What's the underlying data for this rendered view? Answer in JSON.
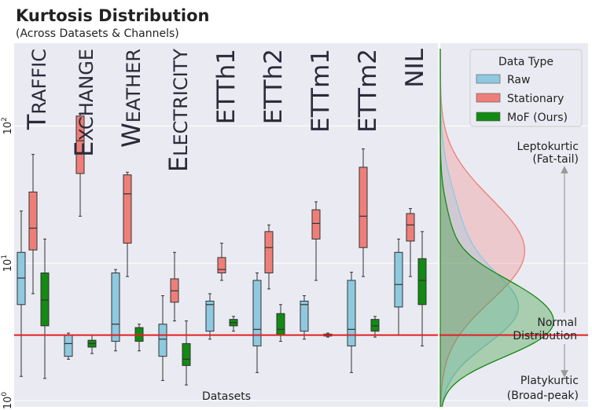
{
  "title": "Kurtosis Distribution",
  "subtitle": "(Across Datasets & Channels)",
  "chart_data": {
    "type": "box",
    "xlabel": "Datasets",
    "ylabel": "",
    "y_scale": "log",
    "ylim": [
      0.9,
      400
    ],
    "y_ticks": [
      {
        "value": 1,
        "label": "10",
        "exp": "0"
      },
      {
        "value": 10,
        "label": "10",
        "exp": "1"
      },
      {
        "value": 100,
        "label": "10",
        "exp": "2"
      }
    ],
    "grid": true,
    "legend": {
      "title": "Data Type",
      "placement": "top-right"
    },
    "reference_line": {
      "value": 3,
      "color": "#e02020"
    },
    "categories": [
      {
        "name": "TRAFFIC",
        "big": "T",
        "small": "RAFFIC"
      },
      {
        "name": "EXCHANGE",
        "big": "E",
        "small": "XCHANGE"
      },
      {
        "name": "WEATHER",
        "big": "W",
        "small": "EATHER"
      },
      {
        "name": "ELECTRICITY",
        "big": "E",
        "small": "LECTRICITY"
      },
      {
        "name": "ETTh1",
        "big": "",
        "small": "ETTh1"
      },
      {
        "name": "ETTh2",
        "big": "",
        "small": "ETTh2"
      },
      {
        "name": "ETTm1",
        "big": "",
        "small": "ETTm1"
      },
      {
        "name": "ETTm2",
        "big": "",
        "small": "ETTm2"
      },
      {
        "name": "NIL",
        "big": "",
        "small": "NIL"
      }
    ],
    "series": [
      {
        "name": "Raw",
        "color": "#8ec9e0",
        "boxes": [
          {
            "min": 1.5,
            "q1": 5.0,
            "median": 7.8,
            "q3": 12.0,
            "max": 24
          },
          {
            "min": 2.0,
            "q1": 2.1,
            "median": 2.6,
            "q3": 3.0,
            "max": 3.1
          },
          {
            "min": 2.3,
            "q1": 2.7,
            "median": 3.6,
            "q3": 8.5,
            "max": 9.0
          },
          {
            "min": 1.4,
            "q1": 2.1,
            "median": 2.8,
            "q3": 3.6,
            "max": 5.8
          },
          {
            "min": 2.8,
            "q1": 3.2,
            "median": 5.0,
            "q3": 5.3,
            "max": 6.0
          },
          {
            "min": 1.6,
            "q1": 2.5,
            "median": 3.3,
            "q3": 7.5,
            "max": 8.5
          },
          {
            "min": 2.8,
            "q1": 3.2,
            "median": 5.0,
            "q3": 5.3,
            "max": 5.8
          },
          {
            "min": 1.6,
            "q1": 2.5,
            "median": 3.3,
            "q3": 7.5,
            "max": 8.6
          },
          {
            "min": 3.0,
            "q1": 4.8,
            "median": 7.0,
            "q3": 12.0,
            "max": 15.0
          }
        ]
      },
      {
        "name": "Stationary",
        "color": "#ee7f78",
        "boxes": [
          {
            "min": 6.0,
            "q1": 12.5,
            "median": 18.0,
            "q3": 33.0,
            "max": 62.0
          },
          {
            "min": 22.0,
            "q1": 45.0,
            "median": 78.0,
            "q3": 118.0,
            "max": 122.0
          },
          {
            "min": 8.0,
            "q1": 14.0,
            "median": 32.0,
            "q3": 44.0,
            "max": 46.0
          },
          {
            "min": 3.8,
            "q1": 5.2,
            "median": 6.3,
            "q3": 7.7,
            "max": 12.0
          },
          {
            "min": 7.5,
            "q1": 8.5,
            "median": 9.0,
            "q3": 11.0,
            "max": 14.0
          },
          {
            "min": 6.5,
            "q1": 8.5,
            "median": 13.0,
            "q3": 17.0,
            "max": 19.0
          },
          {
            "min": 7.5,
            "q1": 15.0,
            "median": 19.5,
            "q3": 24.5,
            "max": 28.0
          },
          {
            "min": 8.0,
            "q1": 13.0,
            "median": 22.0,
            "q3": 50.0,
            "max": 68.0
          },
          {
            "min": 8.0,
            "q1": 14.5,
            "median": 19.0,
            "q3": 23.0,
            "max": 25.0
          }
        ]
      },
      {
        "name": "MoF (Ours)",
        "color": "#138a13",
        "boxes": [
          {
            "min": 1.45,
            "q1": 3.5,
            "median": 5.4,
            "q3": 8.5,
            "max": 15.0
          },
          {
            "min": 2.2,
            "q1": 2.45,
            "median": 2.6,
            "q3": 2.75,
            "max": 3.0
          },
          {
            "min": 2.3,
            "q1": 2.7,
            "median": 3.0,
            "q3": 3.4,
            "max": 3.6
          },
          {
            "min": 1.3,
            "q1": 1.8,
            "median": 2.0,
            "q3": 2.6,
            "max": 3.8
          },
          {
            "min": 3.2,
            "q1": 3.5,
            "median": 3.7,
            "q3": 3.9,
            "max": 4.1
          },
          {
            "min": 2.7,
            "q1": 3.0,
            "median": 3.3,
            "q3": 4.3,
            "max": 5.0
          },
          {
            "min": 2.9,
            "q1": 2.95,
            "median": 3.0,
            "q3": 3.05,
            "max": 3.1
          },
          {
            "min": 2.9,
            "q1": 3.2,
            "median": 3.5,
            "q3": 3.9,
            "max": 4.1
          },
          {
            "min": 2.5,
            "q1": 5.0,
            "median": 7.5,
            "q3": 10.8,
            "max": 17.0
          }
        ]
      }
    ],
    "annotations": {
      "upper": [
        "Leptokurtic",
        "(Fat-tail)"
      ],
      "middle": [
        "Normal",
        "Distribution"
      ],
      "lower": [
        "Platykurtic",
        "(Broad-peak)"
      ]
    }
  }
}
